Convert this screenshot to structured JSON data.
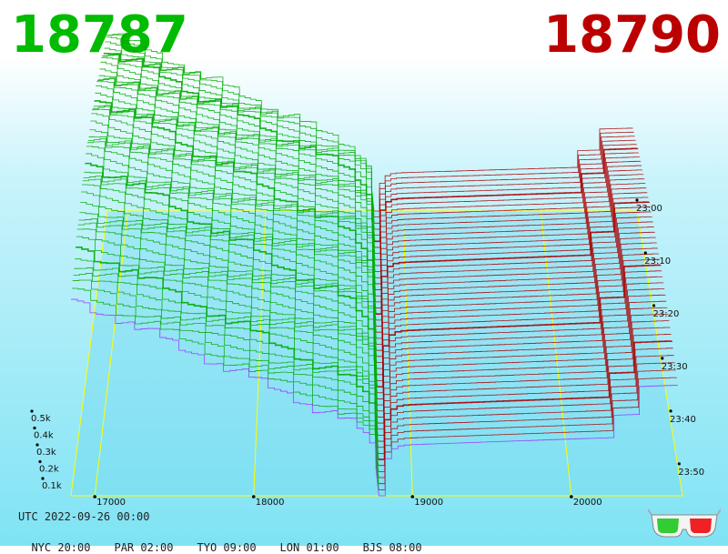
{
  "prices": {
    "bid": "18787",
    "ask": "18790",
    "bid_color": "#00bb00",
    "ask_color": "#bb0000"
  },
  "chart_data": {
    "type": "area",
    "x_axis": {
      "ticks": [
        "17000",
        "18000",
        "19000",
        "20000"
      ],
      "range": [
        16850,
        20700
      ]
    },
    "volume_axis": {
      "ticks": [
        "0.1k",
        "0.2k",
        "0.3k",
        "0.4k",
        "0.5k"
      ]
    },
    "time_axis": {
      "ticks": [
        "23:00",
        "23:10",
        "23:20",
        "23:30",
        "23:40",
        "23:50"
      ]
    },
    "bid_side_color": "#00aa00",
    "ask_side_color": "#aa0000",
    "mid_price": 18788.5,
    "highlight_color": "#ffff00",
    "latest_color": "#9933ff"
  },
  "footer": {
    "utc": "UTC 2022-09-26 00:00",
    "zones": [
      "NYC 20:00",
      "PAR 02:00",
      "TYO 09:00",
      "LON 01:00",
      "BJS 08:00"
    ]
  },
  "icons": {
    "glasses": "3d-glasses-icon"
  }
}
